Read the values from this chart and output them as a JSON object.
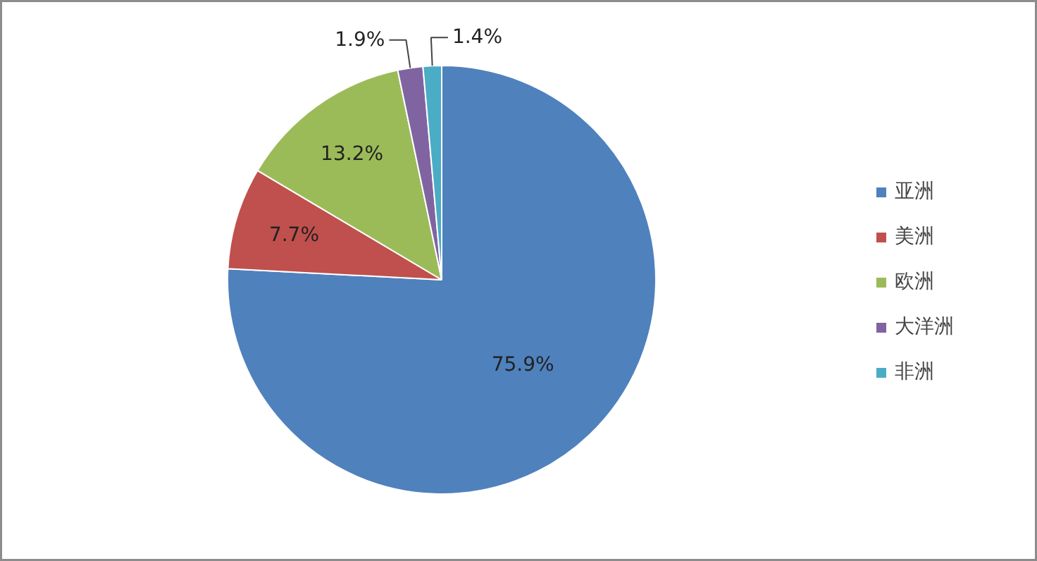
{
  "chart_data": {
    "type": "pie",
    "categories": [
      "亚洲",
      "美洲",
      "欧洲",
      "大洋洲",
      "非洲"
    ],
    "values": [
      75.9,
      7.7,
      13.2,
      1.9,
      1.4
    ],
    "value_labels": [
      "75.9%",
      "7.7%",
      "13.2%",
      "1.9%",
      "1.4%"
    ],
    "colors": [
      "#4f81bd",
      "#c0504d",
      "#9bbb59",
      "#8064a2",
      "#4bacc6"
    ],
    "legend": "right"
  }
}
